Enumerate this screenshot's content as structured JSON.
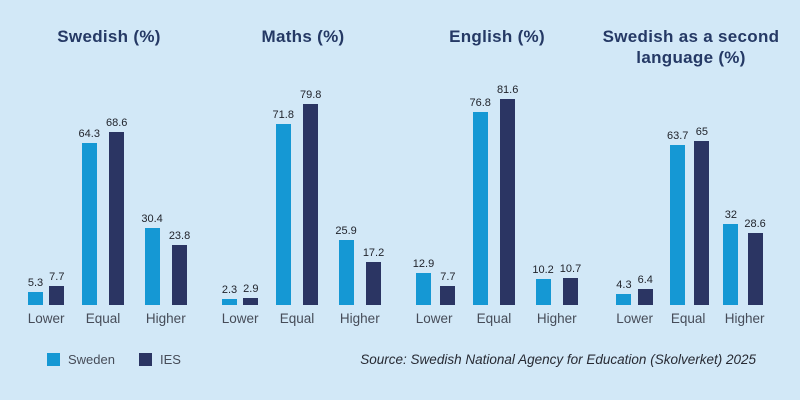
{
  "chart_data": [
    {
      "type": "bar",
      "title": "Swedish (%)",
      "categories": [
        "Lower",
        "Equal",
        "Higher"
      ],
      "series": [
        {
          "name": "Sweden",
          "values": [
            5.3,
            64.3,
            30.4
          ]
        },
        {
          "name": "IES",
          "values": [
            7.7,
            68.6,
            23.8
          ]
        }
      ],
      "ylim": [
        0,
        85
      ],
      "grid": false,
      "value_labels": true,
      "legend_position": "bottom-left"
    },
    {
      "type": "bar",
      "title": "Maths (%)",
      "categories": [
        "Lower",
        "Equal",
        "Higher"
      ],
      "series": [
        {
          "name": "Sweden",
          "values": [
            2.3,
            71.8,
            25.9
          ]
        },
        {
          "name": "IES",
          "values": [
            2.9,
            79.8,
            17.2
          ]
        }
      ],
      "ylim": [
        0,
        85
      ],
      "grid": false,
      "value_labels": true
    },
    {
      "type": "bar",
      "title": "English (%)",
      "categories": [
        "Lower",
        "Equal",
        "Higher"
      ],
      "series": [
        {
          "name": "Sweden",
          "values": [
            12.9,
            76.8,
            10.2
          ]
        },
        {
          "name": "IES",
          "values": [
            7.7,
            81.6,
            10.7
          ]
        }
      ],
      "ylim": [
        0,
        85
      ],
      "grid": false,
      "value_labels": true
    },
    {
      "type": "bar",
      "title": "Swedish as a second language (%)",
      "categories": [
        "Lower",
        "Equal",
        "Higher"
      ],
      "series": [
        {
          "name": "Sweden",
          "values": [
            4.3,
            63.7,
            32
          ]
        },
        {
          "name": "IES",
          "values": [
            6.4,
            65,
            28.6
          ]
        }
      ],
      "ylim": [
        0,
        85
      ],
      "grid": false,
      "value_labels": true
    }
  ],
  "legend": {
    "items": [
      {
        "label": "Sweden",
        "color": "#1598d4"
      },
      {
        "label": "IES",
        "color": "#2b3563"
      }
    ]
  },
  "source": "Source: Swedish National Agency for Education (Skolverket) 2025",
  "colors": {
    "background": "#d2e8f7",
    "sweden": "#1598d4",
    "ies": "#2b3563",
    "title": "#253965",
    "value_label": "#21242c",
    "category_label": "#464c58",
    "source_text": "#272a33"
  }
}
